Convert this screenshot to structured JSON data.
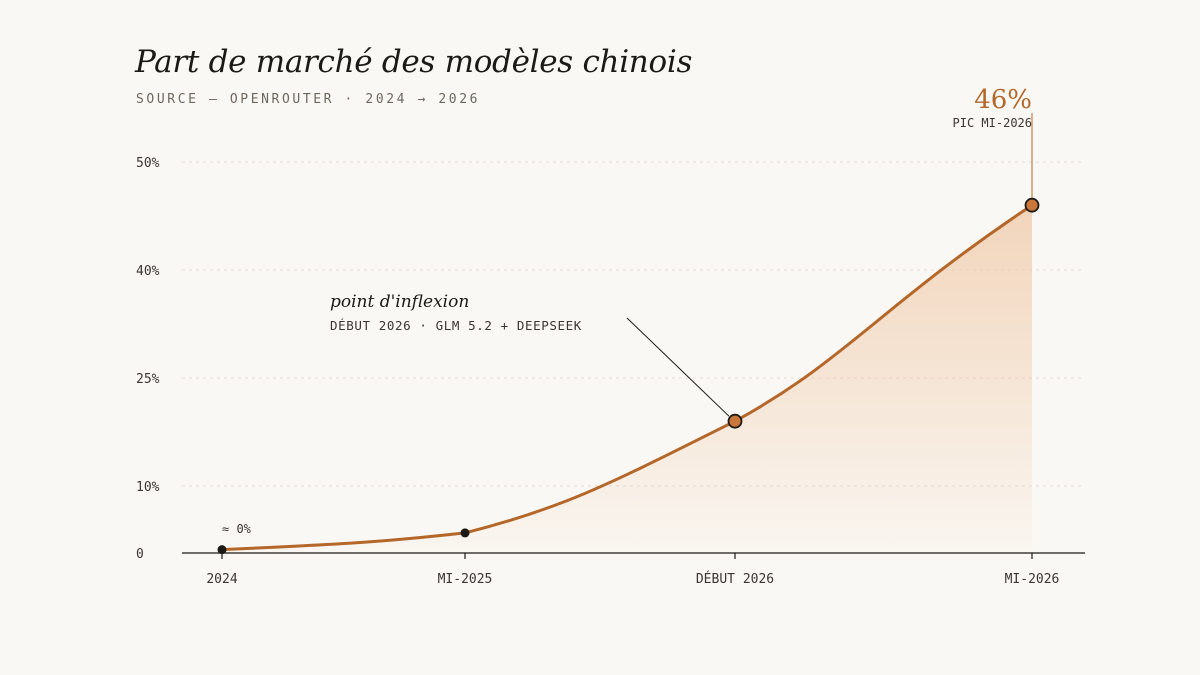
{
  "title": "Part de marché des modèles chinois",
  "subtitle": "SOURCE — OPENROUTER · 2024 → 2026",
  "colors": {
    "background": "#faf8f4",
    "line": "#b5672a",
    "marker_fill": "#c9773a",
    "point": "#1c1a17",
    "area_top": "#efc9a8",
    "gridline": "#e4ddd4",
    "text": "#3a3631",
    "peak_label": "#b5672a"
  },
  "chart_data": {
    "type": "area",
    "title": "Part de marché des modèles chinois",
    "subtitle": "SOURCE — OPENROUTER · 2024 → 2026",
    "x_categories": [
      "2024",
      "MI-2025",
      "DÉBUT 2026",
      "MI-2026"
    ],
    "y_ticks": [
      {
        "value": 0,
        "label": "0"
      },
      {
        "value": 10,
        "label": "10%"
      },
      {
        "value": 25,
        "label": "25%"
      },
      {
        "value": 40,
        "label": "40%"
      },
      {
        "value": 50,
        "label": "50%"
      }
    ],
    "y_scale": "piecewise-linear between labelled ticks",
    "grid": "horizontal dashed",
    "series": [
      {
        "points": [
          {
            "x": "2024",
            "y": 0.5
          },
          {
            "x": "MI-2025",
            "y": 3
          },
          {
            "x": "DÉBUT 2026",
            "y": 19
          },
          {
            "x": "MI-2026",
            "y": 46
          }
        ]
      }
    ],
    "annotations": [
      {
        "target": "2024",
        "text": "≈ 0%"
      },
      {
        "target": "DÉBUT 2026",
        "title": "point d'inflexion",
        "text": "DÉBUT 2026 · GLM 5.2 + DEEPSEEK"
      },
      {
        "target": "MI-2026",
        "value_label": "46%",
        "text": "PIC MI-2026"
      }
    ]
  }
}
